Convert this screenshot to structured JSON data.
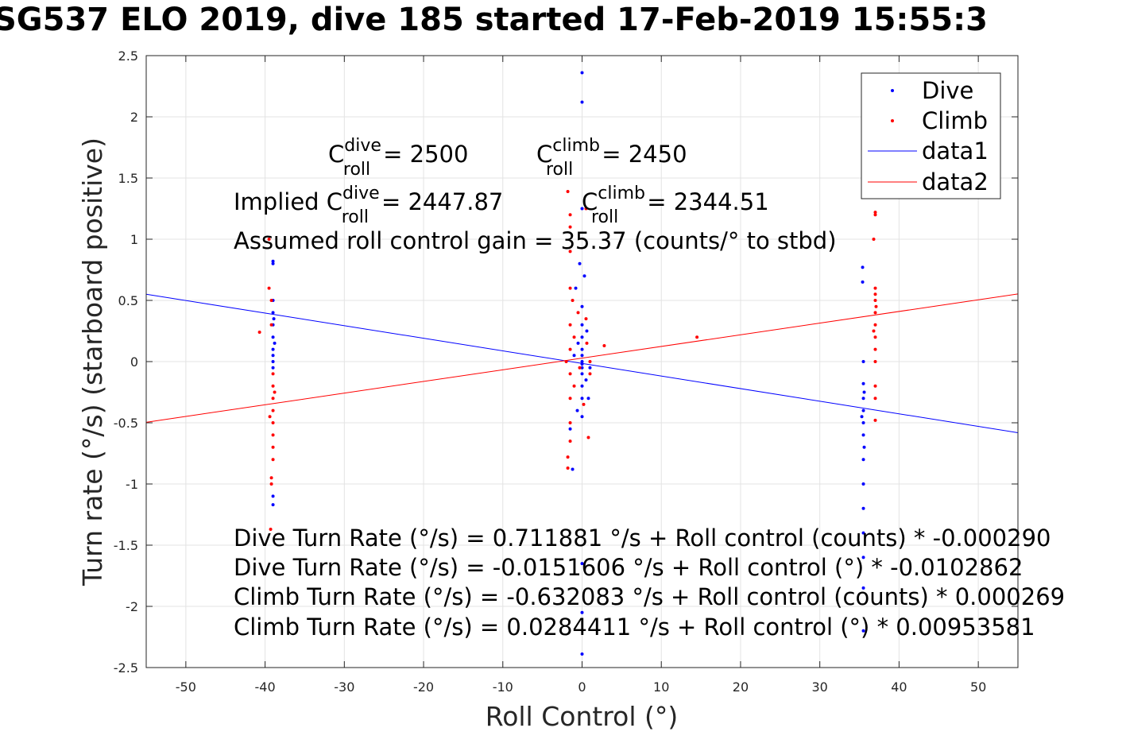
{
  "title": "SG537 ELO 2019, dive 185 started 17-Feb-2019 15:55:3",
  "chart_data": {
    "type": "scatter",
    "xlabel": "Roll Control (°)",
    "ylabel": "Turn rate (°/s) (starboard positive)",
    "xlim": [
      -55,
      55
    ],
    "ylim": [
      -2.5,
      2.5
    ],
    "xticks": [
      -50,
      -40,
      -30,
      -20,
      -10,
      0,
      10,
      20,
      30,
      40,
      50
    ],
    "yticks": [
      -2.5,
      -2,
      -1.5,
      -1,
      -0.5,
      0,
      0.5,
      1,
      1.5,
      2,
      2.5
    ],
    "grid": true,
    "legend_position": "top-right",
    "series": [
      {
        "name": "Dive",
        "kind": "points",
        "color": "#0000ff",
        "points": [
          [
            -39,
            0.82
          ],
          [
            -39,
            0.8
          ],
          [
            -39,
            0.5
          ],
          [
            -39,
            0.4
          ],
          [
            -39,
            0.3
          ],
          [
            -39,
            0.2
          ],
          [
            -39,
            0.1
          ],
          [
            -39,
            0.05
          ],
          [
            -39,
            0.0
          ],
          [
            -39,
            -0.05
          ],
          [
            -38.8,
            0.15
          ],
          [
            -39,
            -1.1
          ],
          [
            -39,
            -1.17
          ],
          [
            -38.9,
            0.35
          ],
          [
            0,
            2.36
          ],
          [
            0,
            2.12
          ],
          [
            0,
            1.25
          ],
          [
            0,
            0.45
          ],
          [
            0,
            0.3
          ],
          [
            0,
            0.2
          ],
          [
            0,
            0.1
          ],
          [
            0,
            0.05
          ],
          [
            0,
            0.0
          ],
          [
            0,
            -0.02
          ],
          [
            0,
            -0.05
          ],
          [
            0,
            -0.1
          ],
          [
            0,
            -0.2
          ],
          [
            0,
            -0.3
          ],
          [
            0,
            -0.45
          ],
          [
            0,
            -1.65
          ],
          [
            0,
            -2.05
          ],
          [
            0,
            -2.39
          ],
          [
            -0.5,
            0.15
          ],
          [
            0.5,
            -0.15
          ],
          [
            -1,
            0.05
          ],
          [
            1,
            -0.05
          ],
          [
            -1.5,
            -0.55
          ],
          [
            -1.2,
            -0.88
          ],
          [
            -0.3,
            0.8
          ],
          [
            0.3,
            0.7
          ],
          [
            -0.8,
            0.6
          ],
          [
            0.8,
            -0.3
          ],
          [
            -0.6,
            -0.4
          ],
          [
            0.6,
            0.25
          ],
          [
            35.5,
            -0.18
          ],
          [
            35.5,
            -0.3
          ],
          [
            35.5,
            -0.4
          ],
          [
            35.5,
            -0.5
          ],
          [
            35.5,
            -0.6
          ],
          [
            35.5,
            -0.8
          ],
          [
            35.5,
            -1.0
          ],
          [
            35.5,
            -1.2
          ],
          [
            35.5,
            -1.4
          ],
          [
            35.5,
            -1.6
          ],
          [
            35.5,
            -1.85
          ],
          [
            35.5,
            -2.2
          ],
          [
            35.4,
            0.77
          ],
          [
            35.4,
            0.65
          ],
          [
            35.5,
            0.0
          ],
          [
            35.6,
            -0.25
          ],
          [
            35.3,
            -0.45
          ],
          [
            35.6,
            -0.7
          ]
        ]
      },
      {
        "name": "Climb",
        "kind": "points",
        "color": "#ff0000",
        "points": [
          [
            -40.7,
            0.24
          ],
          [
            -39.5,
            1.0
          ],
          [
            -39.5,
            0.6
          ],
          [
            -39.2,
            0.5
          ],
          [
            -39.2,
            0.3
          ],
          [
            -39,
            -0.1
          ],
          [
            -39,
            -0.2
          ],
          [
            -39,
            -0.3
          ],
          [
            -39,
            -0.4
          ],
          [
            -39,
            -0.5
          ],
          [
            -39,
            -0.6
          ],
          [
            -39,
            -0.7
          ],
          [
            -39,
            -0.8
          ],
          [
            -39.2,
            -0.95
          ],
          [
            -39.2,
            -1.0
          ],
          [
            -39.3,
            -1.37
          ],
          [
            -38.8,
            -0.25
          ],
          [
            -39.4,
            -0.45
          ],
          [
            -1.8,
            1.39
          ],
          [
            -1.5,
            1.2
          ],
          [
            -1.5,
            1.1
          ],
          [
            -1.5,
            0.9
          ],
          [
            -1.5,
            0.6
          ],
          [
            -1.5,
            0.3
          ],
          [
            -1.5,
            0.1
          ],
          [
            -1.5,
            -0.1
          ],
          [
            -1.5,
            -0.3
          ],
          [
            -1.5,
            -0.5
          ],
          [
            -1.5,
            -0.65
          ],
          [
            -1.8,
            -0.87
          ],
          [
            -1.8,
            -0.78
          ],
          [
            -1,
            0.2
          ],
          [
            -1,
            -0.2
          ],
          [
            -0.5,
            0.4
          ],
          [
            0.5,
            0.35
          ],
          [
            1,
            0.0
          ],
          [
            1,
            -0.1
          ],
          [
            0.8,
            -0.62
          ],
          [
            0.5,
            1.25
          ],
          [
            2.8,
            0.13
          ],
          [
            14.5,
            0.2
          ],
          [
            -1.2,
            0.5
          ],
          [
            0.2,
            -0.35
          ],
          [
            -2,
            0.0
          ],
          [
            -0.3,
            -0.05
          ],
          [
            0.6,
            0.15
          ],
          [
            37,
            1.22
          ],
          [
            37,
            1.2
          ],
          [
            36.8,
            1.0
          ],
          [
            37,
            0.6
          ],
          [
            37,
            0.55
          ],
          [
            37,
            0.5
          ],
          [
            37,
            0.4
          ],
          [
            37,
            0.3
          ],
          [
            37,
            0.2
          ],
          [
            37,
            0.1
          ],
          [
            37,
            0.0
          ],
          [
            37,
            -0.2
          ],
          [
            37,
            -0.3
          ],
          [
            37,
            -0.48
          ],
          [
            36.8,
            0.25
          ],
          [
            37.1,
            0.45
          ]
        ]
      },
      {
        "name": "data1",
        "kind": "line",
        "color": "#0000ff",
        "x": [
          -55,
          55
        ],
        "y": [
          0.5506,
          -0.5809
        ]
      },
      {
        "name": "data2",
        "kind": "line",
        "color": "#ff0000",
        "x": [
          -55,
          55
        ],
        "y": [
          -0.4957,
          0.5526
        ]
      }
    ]
  },
  "annotations": {
    "c_dive_prefix": "C",
    "c_dive_sup": "dive",
    "c_dive_sub": "roll",
    "c_dive_value": "= 2500",
    "c_climb_prefix": "C",
    "c_climb_sup": "climb",
    "c_climb_sub": "roll",
    "c_climb_value": "= 2450",
    "implied_prefix": "Implied C",
    "implied_dive_sup": "dive",
    "implied_dive_sub": "roll",
    "implied_dive_value": "= 2447.87",
    "implied_climb_prefix": "C",
    "implied_climb_sup": "climb",
    "implied_climb_sub": "roll",
    "implied_climb_value": "= 2344.51",
    "gain": "Assumed roll control gain = 35.37 (counts/° to stbd)",
    "fit1": "Dive Turn Rate (°/s) = 0.711881 °/s + Roll control (counts) * -0.000290",
    "fit2": "Dive Turn Rate (°/s) = -0.0151606 °/s + Roll control (°) * -0.0102862",
    "fit3": "Climb Turn Rate (°/s) = -0.632083 °/s + Roll control (counts) * 0.000269",
    "fit4": "Climb Turn Rate (°/s) = 0.0284411 °/s + Roll control (°) * 0.00953581"
  }
}
